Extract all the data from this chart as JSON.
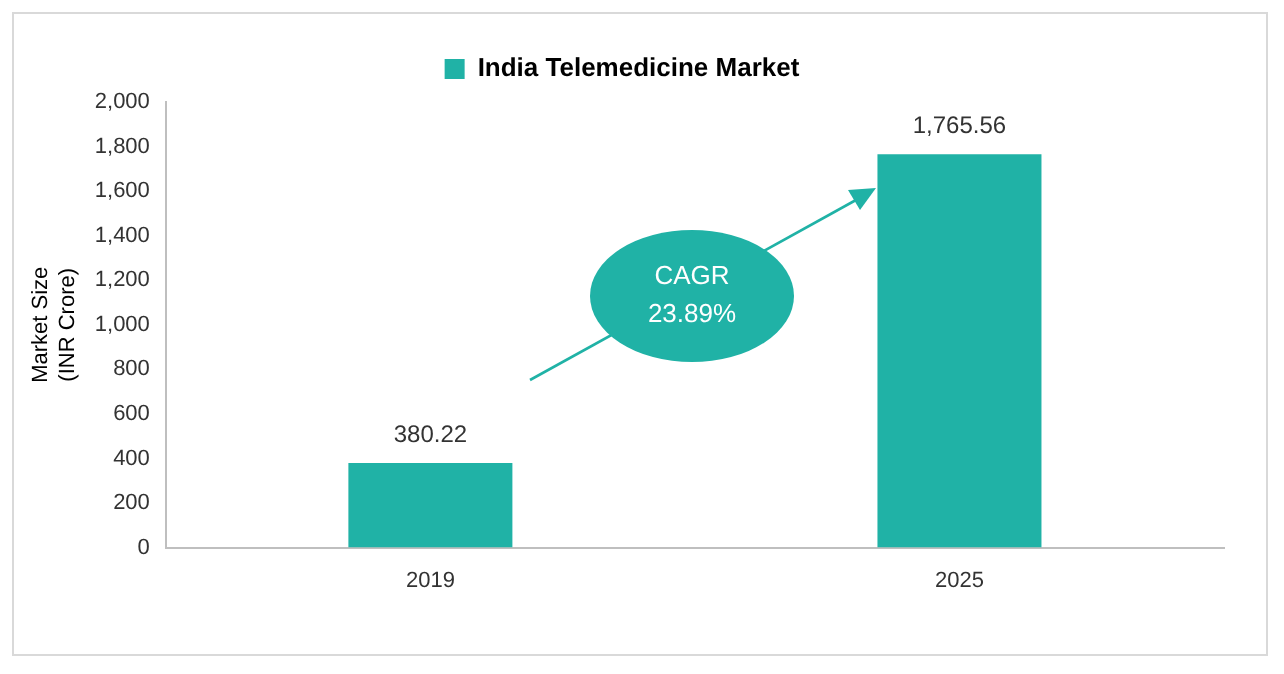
{
  "chart_data": {
    "type": "bar",
    "categories": [
      "2019",
      "2025"
    ],
    "series": [
      {
        "name": "India Telemedicine Market",
        "color": "#20b2a6",
        "values": [
          380.22,
          1765.56
        ],
        "value_labels": [
          "380.22",
          "1,765.56"
        ]
      }
    ],
    "ylabel": "Market Size\n(INR Crore)",
    "ylim": [
      0,
      2000
    ],
    "yticks": [
      0,
      200,
      400,
      600,
      800,
      {
        "value": 1000,
        "label": "1,000"
      },
      {
        "value": 1200,
        "label": "1,200"
      },
      {
        "value": 1400,
        "label": "1,400"
      },
      {
        "value": 1600,
        "label": "1,600"
      },
      {
        "value": 1800,
        "label": "1,800"
      },
      {
        "value": 2000,
        "label": "2,000"
      }
    ],
    "grid": false,
    "legend": "top",
    "annotations": [
      "CAGR\n23.89%"
    ]
  }
}
